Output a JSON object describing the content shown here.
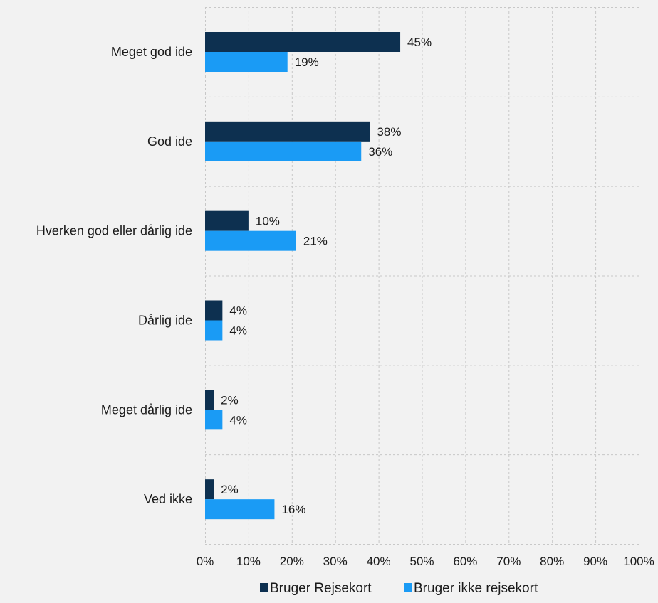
{
  "chart_data": {
    "type": "bar",
    "orientation": "horizontal",
    "categories": [
      "Meget god ide",
      "God ide",
      "Hverken god eller dårlig ide",
      "Dårlig ide",
      "Meget dårlig ide",
      "Ved ikke"
    ],
    "series": [
      {
        "name": "Bruger Rejsekort",
        "values": [
          45,
          38,
          10,
          4,
          2,
          2
        ],
        "color": "#0d3050"
      },
      {
        "name": "Bruger ikke rejsekort",
        "values": [
          19,
          36,
          21,
          4,
          4,
          16
        ],
        "color": "#1a9bf5"
      }
    ],
    "data_labels": [
      [
        "45%",
        "38%",
        "10%",
        "4%",
        "2%",
        "2%"
      ],
      [
        "19%",
        "36%",
        "21%",
        "4%",
        "4%",
        "16%"
      ]
    ],
    "xlim": [
      0,
      100
    ],
    "x_ticks": [
      "0%",
      "10%",
      "20%",
      "30%",
      "40%",
      "50%",
      "60%",
      "70%",
      "80%",
      "90%",
      "100%"
    ],
    "grid": true,
    "legend_position": "bottom",
    "title": "",
    "xlabel": "",
    "ylabel": ""
  }
}
